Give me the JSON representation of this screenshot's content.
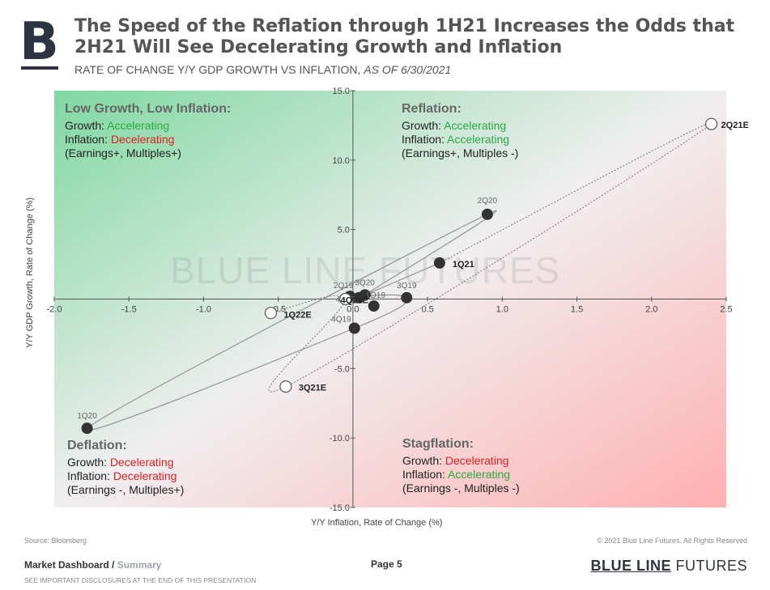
{
  "logo": {
    "letter": "B"
  },
  "header": {
    "title": "The Speed of the Reflation through 1H21 Increases the Odds that 2H21 Will See Decelerating Growth and Inflation",
    "subtitle_main": "RATE OF CHANGE Y/Y GDP GROWTH VS INFLATION, ",
    "subtitle_date": "AS OF 6/30/2021"
  },
  "chart_data": {
    "type": "scatter",
    "xlabel": "Y/Y Inflation, Rate of Change (%)",
    "ylabel": "Y/Y GDP Growth, Rate of Change (%)",
    "xlim": [
      -2.0,
      2.5
    ],
    "ylim": [
      -15.0,
      15.0
    ],
    "x_ticks": [
      -2.0,
      -1.5,
      -1.0,
      -0.5,
      0.0,
      0.5,
      1.0,
      1.5,
      2.0,
      2.5
    ],
    "y_ticks": [
      -15.0,
      -10.0,
      -5.0,
      5.0,
      10.0,
      15.0
    ],
    "watermark": "BLUE LINE FUTURES",
    "path_actual": [
      "2Q19",
      "3Q19",
      "4Q19",
      "1Q20",
      "2Q20",
      "3Q20",
      "4Q20",
      "1Q21"
    ],
    "path_estimate": [
      "1Q21",
      "2Q21E",
      "3Q21E",
      "4Q21E",
      "1Q22E"
    ],
    "points": [
      {
        "label": "2Q19",
        "x": -0.02,
        "y": 0.2,
        "estimate": false,
        "bold": false
      },
      {
        "label": "3Q19",
        "x": 0.36,
        "y": 0.1,
        "estimate": false,
        "bold": false
      },
      {
        "label": "4Q19",
        "x": 0.01,
        "y": -2.1,
        "estimate": false,
        "bold": false
      },
      {
        "label": "1Q20",
        "x": -1.78,
        "y": -9.3,
        "estimate": false,
        "bold": false
      },
      {
        "label": "2Q20",
        "x": 0.9,
        "y": 6.1,
        "estimate": false,
        "bold": false
      },
      {
        "label": "3Q20",
        "x": 0.08,
        "y": 0.3,
        "estimate": false,
        "bold": false
      },
      {
        "label": "4Q20",
        "x": 0.04,
        "y": 0.1,
        "estimate": false,
        "bold": false
      },
      {
        "label": "1Q19",
        "x": 0.14,
        "y": -0.5,
        "estimate": false,
        "bold": false
      },
      {
        "label": "1Q21",
        "x": 0.58,
        "y": 2.6,
        "estimate": false,
        "bold": true
      },
      {
        "label": "2Q21E",
        "x": 2.4,
        "y": 12.6,
        "estimate": true,
        "bold": true
      },
      {
        "label": "3Q21E",
        "x": -0.45,
        "y": -6.3,
        "estimate": true,
        "bold": true
      },
      {
        "label": "4Q21E",
        "x": -0.05,
        "y": 0.0,
        "estimate": true,
        "bold": true
      },
      {
        "label": "1Q22E",
        "x": -0.55,
        "y": -1.0,
        "estimate": true,
        "bold": true
      }
    ],
    "colors": {
      "top_left": "#7fd8a0",
      "bottom_right": "#ffb0b0",
      "neutral": "#f0eef0",
      "actual_marker": "#333333",
      "line": "#999999"
    }
  },
  "quadrants": {
    "top_left": {
      "title": "Low Growth, Low Inflation:",
      "growth_label": "Growth: ",
      "growth_value": "Accelerating",
      "inflation_label": "Inflation: ",
      "inflation_value": "Decelerating",
      "note": "(Earnings+, Multiples+)"
    },
    "top_right": {
      "title": "Reflation:",
      "growth_label": "Growth: ",
      "growth_value": "Accelerating",
      "inflation_label": "Inflation: ",
      "inflation_value": "Accelerating",
      "note": "(Earnings+, Multiples -)"
    },
    "bottom_left": {
      "title": "Deflation:",
      "growth_label": "Growth: ",
      "growth_value": "Decelerating",
      "inflation_label": "Inflation: ",
      "inflation_value": "Decelerating",
      "note": "(Earnings -, Multiples+)"
    },
    "bottom_right": {
      "title": "Stagflation:",
      "growth_label": "Growth: ",
      "growth_value": "Decelerating",
      "inflation_label": "Inflation: ",
      "inflation_value": "Accelerating",
      "note": "(Earnings -, Multiples -)"
    }
  },
  "footer": {
    "source": "Source: Bloomberg",
    "copyright": "© 2021 Blue Line Futures. All Rights Reserved",
    "section": "Market Dashboard",
    "separator": " / ",
    "subsection": "Summary",
    "disclaimer": "SEE IMPORTANT DISCLOSURES AT THE END OF THIS PRESENTATION",
    "page": "Page 5",
    "brand_bold": "BLUE LINE",
    "brand_light": " FUTURES"
  }
}
